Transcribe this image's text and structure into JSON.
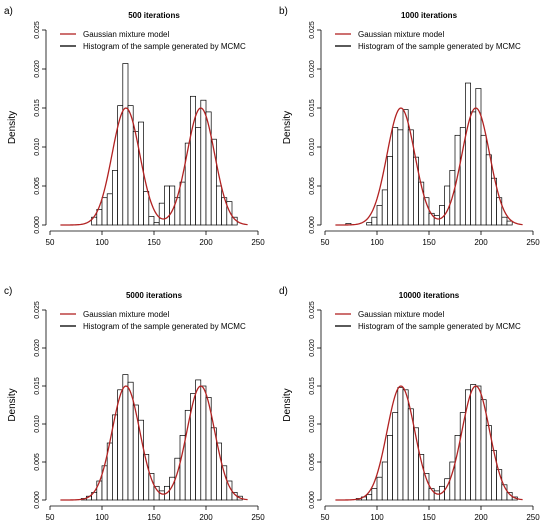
{
  "chart_data": [
    {
      "type": "bar",
      "panel_label": "a)",
      "title": "500 iterations",
      "xlabel": "",
      "ylabel": "Density",
      "xlim": [
        50,
        250
      ],
      "ylim": [
        0,
        0.025
      ],
      "xticks": [
        "50",
        "100",
        "150",
        "200",
        "250"
      ],
      "yticks": [
        "0.000",
        "0.005",
        "0.010",
        "0.015",
        "0.020",
        "0.025"
      ],
      "legend": [
        "Gaussian mixture model",
        "Histogram of the sample generated by MCMC"
      ],
      "legend_position": "top-right",
      "colors": {
        "model": "#b22222",
        "histogram": "#000000"
      },
      "model": {
        "means": [
          123,
          195
        ],
        "sd": 13.3,
        "weights": [
          0.5,
          0.5
        ]
      },
      "bin_width": 5,
      "bins": [
        [
          90,
          0.001
        ],
        [
          95,
          0.002
        ],
        [
          100,
          0.0035
        ],
        [
          105,
          0.004
        ],
        [
          110,
          0.007
        ],
        [
          115,
          0.0153
        ],
        [
          120,
          0.0207
        ],
        [
          125,
          0.0153
        ],
        [
          130,
          0.012
        ],
        [
          135,
          0.0132
        ],
        [
          140,
          0.0043
        ],
        [
          145,
          0.0011
        ],
        [
          150,
          0.0003
        ],
        [
          155,
          0.0028
        ],
        [
          160,
          0.005
        ],
        [
          165,
          0.005
        ],
        [
          170,
          0.0035
        ],
        [
          175,
          0.0055
        ],
        [
          180,
          0.0105
        ],
        [
          185,
          0.0165
        ],
        [
          190,
          0.0125
        ],
        [
          195,
          0.016
        ],
        [
          200,
          0.0145
        ],
        [
          205,
          0.011
        ],
        [
          210,
          0.005
        ],
        [
          215,
          0.0035
        ],
        [
          220,
          0.003
        ],
        [
          225,
          0.001
        ]
      ]
    },
    {
      "type": "bar",
      "panel_label": "b)",
      "title": "1000 iterations",
      "xlabel": "",
      "ylabel": "Density",
      "xlim": [
        50,
        250
      ],
      "ylim": [
        0,
        0.025
      ],
      "xticks": [
        "50",
        "100",
        "150",
        "200",
        "250"
      ],
      "yticks": [
        "0.000",
        "0.005",
        "0.010",
        "0.015",
        "0.020",
        "0.025"
      ],
      "legend": [
        "Gaussian mixture model",
        "Histogram of the sample generated by MCMC"
      ],
      "legend_position": "top-right",
      "colors": {
        "model": "#b22222",
        "histogram": "#000000"
      },
      "model": {
        "means": [
          123,
          195
        ],
        "sd": 13.3,
        "weights": [
          0.5,
          0.5
        ]
      },
      "bin_width": 5,
      "bins": [
        [
          70,
          0.0002
        ],
        [
          90,
          0.0003
        ],
        [
          95,
          0.001
        ],
        [
          100,
          0.0025
        ],
        [
          105,
          0.0045
        ],
        [
          110,
          0.0088
        ],
        [
          115,
          0.0125
        ],
        [
          120,
          0.0122
        ],
        [
          125,
          0.0148
        ],
        [
          130,
          0.0122
        ],
        [
          135,
          0.0087
        ],
        [
          140,
          0.0055
        ],
        [
          145,
          0.0035
        ],
        [
          150,
          0.0015
        ],
        [
          155,
          0.0012
        ],
        [
          160,
          0.0025
        ],
        [
          165,
          0.005
        ],
        [
          170,
          0.007
        ],
        [
          175,
          0.0115
        ],
        [
          180,
          0.0125
        ],
        [
          185,
          0.0182
        ],
        [
          190,
          0.0145
        ],
        [
          195,
          0.0175
        ],
        [
          200,
          0.0115
        ],
        [
          205,
          0.009
        ],
        [
          210,
          0.006
        ],
        [
          215,
          0.0035
        ],
        [
          220,
          0.001
        ],
        [
          225,
          0.0005
        ]
      ]
    },
    {
      "type": "bar",
      "panel_label": "c)",
      "title": "5000 iterations",
      "xlabel": "",
      "ylabel": "Density",
      "xlim": [
        50,
        250
      ],
      "ylim": [
        0,
        0.025
      ],
      "xticks": [
        "50",
        "100",
        "150",
        "200",
        "250"
      ],
      "yticks": [
        "0.000",
        "0.005",
        "0.010",
        "0.015",
        "0.020",
        "0.025"
      ],
      "legend": [
        "Gaussian mixture model",
        "Histogram of the sample generated by MCMC"
      ],
      "legend_position": "top-right",
      "colors": {
        "model": "#b22222",
        "histogram": "#000000"
      },
      "model": {
        "means": [
          123,
          195
        ],
        "sd": 13.3,
        "weights": [
          0.5,
          0.5
        ]
      },
      "bin_width": 5,
      "bins": [
        [
          80,
          0.0002
        ],
        [
          85,
          0.0005
        ],
        [
          90,
          0.001
        ],
        [
          95,
          0.0025
        ],
        [
          100,
          0.0045
        ],
        [
          105,
          0.0075
        ],
        [
          110,
          0.0112
        ],
        [
          115,
          0.0145
        ],
        [
          120,
          0.0165
        ],
        [
          125,
          0.0155
        ],
        [
          130,
          0.0125
        ],
        [
          135,
          0.0105
        ],
        [
          140,
          0.006
        ],
        [
          145,
          0.0035
        ],
        [
          150,
          0.0018
        ],
        [
          155,
          0.0012
        ],
        [
          160,
          0.0018
        ],
        [
          165,
          0.003
        ],
        [
          170,
          0.0055
        ],
        [
          175,
          0.0085
        ],
        [
          180,
          0.0118
        ],
        [
          185,
          0.014
        ],
        [
          190,
          0.0158
        ],
        [
          195,
          0.015
        ],
        [
          200,
          0.0135
        ],
        [
          205,
          0.0095
        ],
        [
          210,
          0.0075
        ],
        [
          215,
          0.0045
        ],
        [
          220,
          0.0025
        ],
        [
          225,
          0.001
        ],
        [
          230,
          0.0005
        ]
      ]
    },
    {
      "type": "bar",
      "panel_label": "d)",
      "title": "10000 iterations",
      "xlabel": "",
      "ylabel": "Density",
      "xlim": [
        50,
        250
      ],
      "ylim": [
        0,
        0.025
      ],
      "xticks": [
        "50",
        "100",
        "150",
        "200",
        "250"
      ],
      "yticks": [
        "0.000",
        "0.005",
        "0.010",
        "0.015",
        "0.020",
        "0.025"
      ],
      "legend": [
        "Gaussian mixture model",
        "Histogram of the sample generated by MCMC"
      ],
      "legend_position": "top-right",
      "colors": {
        "model": "#b22222",
        "histogram": "#000000"
      },
      "model": {
        "means": [
          123,
          195
        ],
        "sd": 13.3,
        "weights": [
          0.5,
          0.5
        ]
      },
      "bin_width": 5,
      "bins": [
        [
          80,
          0.0002
        ],
        [
          85,
          0.0004
        ],
        [
          90,
          0.0007
        ],
        [
          95,
          0.0015
        ],
        [
          100,
          0.003
        ],
        [
          105,
          0.005
        ],
        [
          110,
          0.0085
        ],
        [
          115,
          0.0115
        ],
        [
          120,
          0.0148
        ],
        [
          125,
          0.0145
        ],
        [
          130,
          0.012
        ],
        [
          135,
          0.0095
        ],
        [
          140,
          0.006
        ],
        [
          145,
          0.0035
        ],
        [
          150,
          0.0015
        ],
        [
          155,
          0.0012
        ],
        [
          160,
          0.0018
        ],
        [
          165,
          0.0028
        ],
        [
          170,
          0.005
        ],
        [
          175,
          0.0085
        ],
        [
          180,
          0.0115
        ],
        [
          185,
          0.0145
        ],
        [
          190,
          0.0152
        ],
        [
          195,
          0.015
        ],
        [
          200,
          0.0132
        ],
        [
          205,
          0.0098
        ],
        [
          210,
          0.0065
        ],
        [
          215,
          0.004
        ],
        [
          220,
          0.002
        ],
        [
          225,
          0.001
        ],
        [
          230,
          0.0004
        ]
      ]
    }
  ]
}
